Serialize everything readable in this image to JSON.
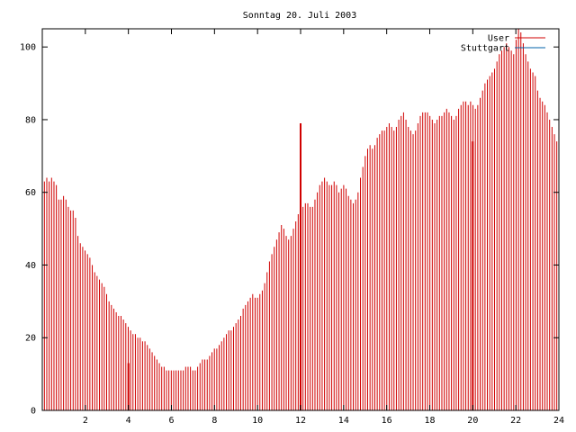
{
  "chart_data": {
    "type": "bar",
    "title": "Sonntag 20. Juli 2003",
    "xlabel": "",
    "ylabel": "",
    "xlim": [
      0,
      24
    ],
    "ylim": [
      0,
      105
    ],
    "x_ticks": [
      "2",
      "4",
      "6",
      "8",
      "10",
      "12",
      "14",
      "16",
      "18",
      "20",
      "22",
      "24"
    ],
    "y_ticks": [
      "0",
      "20",
      "40",
      "60",
      "80",
      "100"
    ],
    "grid": false,
    "legend_position": "top-right",
    "series": [
      {
        "name": "User",
        "color": "#d00000",
        "x_step_hours": 0.0833,
        "values": [
          63,
          64,
          63,
          64,
          63,
          62,
          58,
          58,
          59,
          58,
          56,
          55,
          55,
          53,
          48,
          46,
          45,
          44,
          43,
          42,
          40,
          38,
          37,
          36,
          35,
          34,
          32,
          30,
          29,
          28,
          27,
          26,
          26,
          25,
          24,
          23,
          22,
          21,
          21,
          20,
          20,
          19,
          19,
          18,
          17,
          16,
          15,
          14,
          13,
          12,
          12,
          11,
          11,
          11,
          11,
          11,
          11,
          11,
          11,
          12,
          12,
          12,
          11,
          11,
          12,
          13,
          14,
          14,
          14,
          15,
          16,
          17,
          17,
          18,
          19,
          20,
          21,
          22,
          22,
          23,
          24,
          25,
          26,
          28,
          29,
          30,
          31,
          32,
          31,
          31,
          32,
          33,
          35,
          38,
          41,
          43,
          45,
          47,
          49,
          51,
          50,
          48,
          47,
          48,
          50,
          52,
          54,
          55,
          56,
          57,
          57,
          56,
          56,
          58,
          60,
          62,
          63,
          64,
          63,
          62,
          62,
          63,
          62,
          60,
          61,
          62,
          61,
          59,
          58,
          57,
          58,
          60,
          64,
          67,
          70,
          72,
          73,
          72,
          73,
          75,
          76,
          77,
          77,
          78,
          79,
          78,
          77,
          78,
          80,
          81,
          82,
          80,
          78,
          77,
          76,
          77,
          79,
          81,
          82,
          82,
          82,
          81,
          80,
          79,
          80,
          81,
          81,
          82,
          83,
          82,
          81,
          80,
          81,
          83,
          84,
          85,
          85,
          84,
          85,
          84,
          83,
          84,
          86,
          88,
          90,
          91,
          92,
          93,
          94,
          96,
          98,
          99,
          100,
          101,
          100,
          99,
          98,
          102,
          105,
          104,
          101,
          98,
          96,
          94,
          93,
          92,
          88,
          86,
          85,
          84,
          82,
          80,
          78,
          76,
          74
        ]
      },
      {
        "name": "Stuttgart",
        "color": "#0060a8",
        "values": [
          0,
          0
        ]
      }
    ]
  }
}
